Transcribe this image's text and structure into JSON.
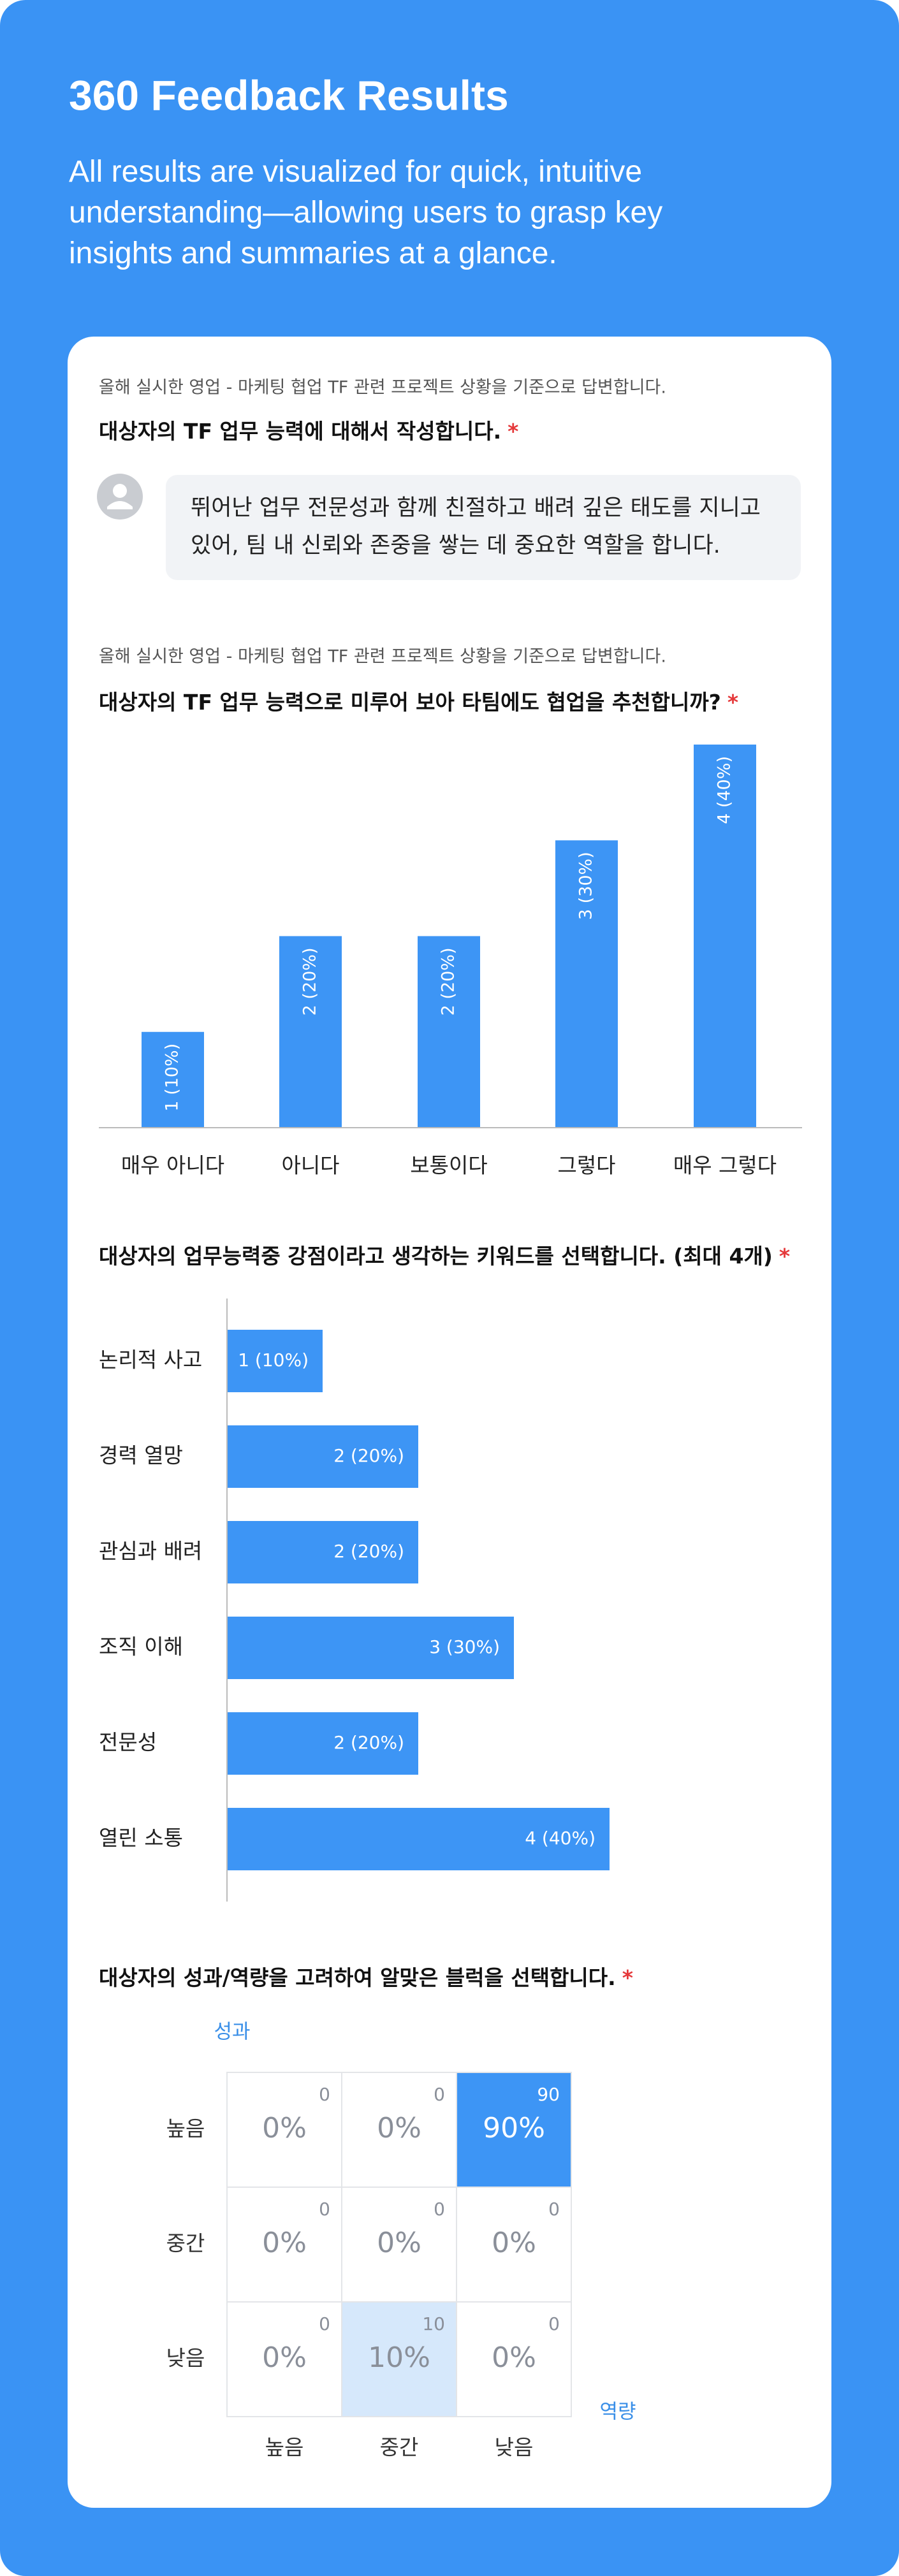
{
  "header": {
    "title": "360 Feedback Results",
    "subtitle": "All results are visualized for quick, intuitive understanding—allowing users to grasp key insights and summaries at a glance."
  },
  "questions": [
    {
      "context": "올해 실시한 영업 - 마케팅 협업 TF 관련 프로젝트 상황을 기준으로 답변합니다.",
      "prompt": "대상자의 TF 업무 능력에 대해서 작성합니다.",
      "required": "*",
      "answer": "뛰어난 업무 전문성과 함께 친절하고 배려 깊은 태도를 지니고 있어, 팀 내 신뢰와 존중을 쌓는 데 중요한 역할을 합니다."
    },
    {
      "context": "올해 실시한 영업 - 마케팅 협업 TF 관련 프로젝트 상황을 기준으로 답변합니다.",
      "prompt": "대상자의 TF 업무 능력으로 미루어 보아 타팀에도 협업을 추천합니까?",
      "required": "*",
      "chart_data": {
        "type": "bar",
        "categories": [
          "매우 아니다",
          "아니다",
          "보통이다",
          "그렇다",
          "매우 그렇다"
        ],
        "values": [
          1,
          2,
          2,
          3,
          4
        ],
        "value_labels": [
          "1 (10%)",
          "2 (20%)",
          "2 (20%)",
          "3 (30%)",
          "4 (40%)"
        ],
        "color": "#3d95f5",
        "ylim": [
          0,
          4
        ]
      }
    },
    {
      "prompt": "대상자의 업무능력중 강점이라고 생각하는 키워드를 선택합니다. (최대 4개)",
      "required": "*",
      "chart_data": {
        "type": "hbar",
        "categories": [
          "논리적 사고",
          "경력 열망",
          "관심과 배려",
          "조직 이해",
          "전문성",
          "열린 소통"
        ],
        "values": [
          1,
          2,
          2,
          3,
          2,
          4
        ],
        "value_labels": [
          "1 (10%)",
          "2 (20%)",
          "2 (20%)",
          "3 (30%)",
          "2 (20%)",
          "4 (40%)"
        ],
        "color": "#3d95f5",
        "xlim": [
          0,
          6
        ]
      }
    },
    {
      "prompt": "대상자의 성과/역량을 고려하여 알맞은 블럭을 선택합니다.",
      "required": "*",
      "chart_data": {
        "type": "heatmap",
        "y_label": "성과",
        "x_label": "역량",
        "rows": [
          "높음",
          "중간",
          "낮음"
        ],
        "columns": [
          "높음",
          "중간",
          "낮음"
        ],
        "values": [
          [
            0,
            0,
            90
          ],
          [
            0,
            0,
            0
          ],
          [
            0,
            10,
            0
          ]
        ],
        "value_labels": [
          [
            "0%",
            "0%",
            "90%"
          ],
          [
            "0%",
            "0%",
            "0%"
          ],
          [
            "0%",
            "10%",
            "0%"
          ]
        ],
        "colors": [
          [
            "#ffffff",
            "#ffffff",
            "#3d95f5"
          ],
          [
            "#ffffff",
            "#ffffff",
            "#ffffff"
          ],
          [
            "#ffffff",
            "#d6e8fb",
            "#ffffff"
          ]
        ]
      }
    }
  ]
}
